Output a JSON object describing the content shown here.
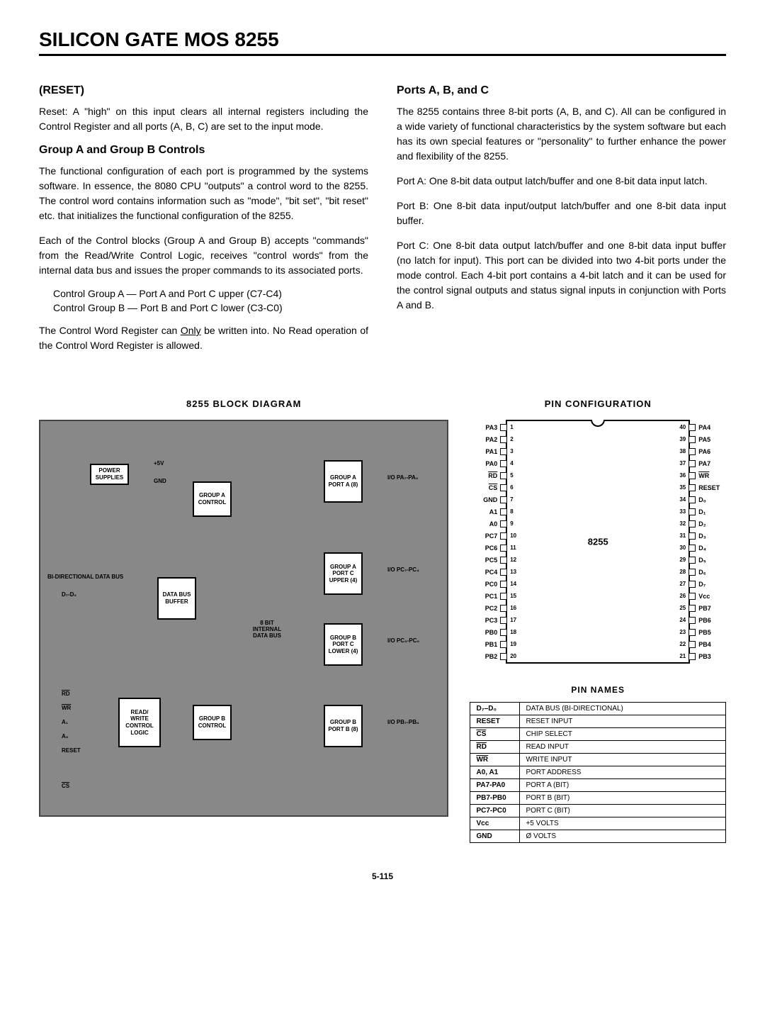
{
  "title": "SILICON GATE MOS 8255",
  "pageNum": "5-115",
  "left": {
    "h1": "(RESET)",
    "p1": "Reset: A \"high\" on this input clears all internal registers including the Control Register and all ports (A, B, C) are set to the input mode.",
    "h2": "Group A and Group B Controls",
    "p2": "The functional configuration of each port is programmed by the systems software. In essence, the 8080 CPU \"outputs\" a control word to the 8255. The control word contains information such as \"mode\", \"bit set\", \"bit reset\" etc. that initializes the functional configuration of the 8255.",
    "p3": "Each of the Control blocks (Group A and Group B) accepts \"commands\" from the Read/Write Control Logic, receives \"control words\" from the internal data bus and issues the proper commands to its associated ports.",
    "i1": "Control Group A — Port A and Port C upper (C7-C4)",
    "i2": "Control Group B — Port B and Port C lower (C3-C0)",
    "p4a": "The Control Word Register can ",
    "p4u": "Only",
    "p4b": " be written into. No Read operation of the Control Word Register is allowed."
  },
  "right": {
    "h1": "Ports A, B, and C",
    "p1": "The 8255 contains three 8-bit ports (A, B, and C). All can be configured in a wide variety of functional characteristics by the system software but each has its own special features or \"personality\" to further enhance the power and flexibility of the 8255.",
    "p2": "Port A: One 8-bit data output latch/buffer and one 8-bit data input latch.",
    "p3": "Port B: One 8-bit data input/output latch/buffer and one 8-bit data input buffer.",
    "p4": "Port C: One 8-bit data output latch/buffer and one 8-bit data input buffer (no latch for input). This port can be divided into two 4-bit ports under the mode control. Each 4-bit port contains a 4-bit latch and it can be used for the control signal outputs and status signal inputs in conjunction with Ports A and B."
  },
  "blockDiagram": {
    "title": "8255 BLOCK DIAGRAM",
    "boxes": {
      "power": "POWER\nSUPPLIES",
      "groupACtrl": "GROUP\nA\nCONTROL",
      "groupBCtrl": "GROUP\nB\nCONTROL",
      "dataBuf": "DATA\nBUS\nBUFFER",
      "rwLogic": "READ/\nWRITE\nCONTROL\nLOGIC",
      "portA": "GROUP\nA\nPORT\nA\n(8)",
      "portCU": "GROUP\nA\nPORT C\nUPPER\n(4)",
      "portCL": "GROUP\nB\nPORT C\nLOWER\n(4)",
      "portB": "GROUP\nB\nPORT\nB\n(8)",
      "internal": "8 BIT\nINTERNAL\nDATA BUS"
    },
    "labels": {
      "bidir": "BI-DIRECTIONAL DATA BUS",
      "d7d0": "D₇-D₀",
      "ioA": "I/O\nPA₇-PA₀",
      "ioCU": "I/O\nPC₇-PC₄",
      "ioCL": "I/O\nPC₃-PC₀",
      "ioB": "I/O\nPB₇-PB₀",
      "rd": "RD",
      "wr": "WR",
      "a1": "A₁",
      "a0": "A₀",
      "reset": "RESET",
      "cs": "CS",
      "p5v": "+5V",
      "gnd": "GND"
    }
  },
  "pinConfig": {
    "title": "PIN CONFIGURATION",
    "chipName": "8255",
    "pins": [
      {
        "l": "PA3",
        "ln": "1",
        "rn": "40",
        "r": "PA4"
      },
      {
        "l": "PA2",
        "ln": "2",
        "rn": "39",
        "r": "PA5"
      },
      {
        "l": "PA1",
        "ln": "3",
        "rn": "38",
        "r": "PA6"
      },
      {
        "l": "PA0",
        "ln": "4",
        "rn": "37",
        "r": "PA7"
      },
      {
        "l": "RD",
        "ln": "5",
        "rn": "36",
        "r": "WR",
        "lo": true,
        "ro": true
      },
      {
        "l": "CS",
        "ln": "6",
        "rn": "35",
        "r": "RESET",
        "lo": true
      },
      {
        "l": "GND",
        "ln": "7",
        "rn": "34",
        "r": "D₀"
      },
      {
        "l": "A1",
        "ln": "8",
        "rn": "33",
        "r": "D₁"
      },
      {
        "l": "A0",
        "ln": "9",
        "rn": "32",
        "r": "D₂"
      },
      {
        "l": "PC7",
        "ln": "10",
        "rn": "31",
        "r": "D₃"
      },
      {
        "l": "PC6",
        "ln": "11",
        "rn": "30",
        "r": "D₄"
      },
      {
        "l": "PC5",
        "ln": "12",
        "rn": "29",
        "r": "D₅"
      },
      {
        "l": "PC4",
        "ln": "13",
        "rn": "28",
        "r": "D₆"
      },
      {
        "l": "PC0",
        "ln": "14",
        "rn": "27",
        "r": "D₇"
      },
      {
        "l": "PC1",
        "ln": "15",
        "rn": "26",
        "r": "Vcc"
      },
      {
        "l": "PC2",
        "ln": "16",
        "rn": "25",
        "r": "PB7"
      },
      {
        "l": "PC3",
        "ln": "17",
        "rn": "24",
        "r": "PB6"
      },
      {
        "l": "PB0",
        "ln": "18",
        "rn": "23",
        "r": "PB5"
      },
      {
        "l": "PB1",
        "ln": "19",
        "rn": "22",
        "r": "PB4"
      },
      {
        "l": "PB2",
        "ln": "20",
        "rn": "21",
        "r": "PB3"
      }
    ]
  },
  "pinNames": {
    "title": "PIN NAMES",
    "rows": [
      {
        "k": "D₇–D₀",
        "v": "DATA BUS (BI-DIRECTIONAL)"
      },
      {
        "k": "RESET",
        "v": "RESET INPUT"
      },
      {
        "k": "CS",
        "v": "CHIP SELECT",
        "ko": true
      },
      {
        "k": "RD",
        "v": "READ INPUT",
        "ko": true
      },
      {
        "k": "WR",
        "v": "WRITE INPUT",
        "ko": true
      },
      {
        "k": "A0, A1",
        "v": "PORT ADDRESS"
      },
      {
        "k": "PA7-PA0",
        "v": "PORT A (BIT)"
      },
      {
        "k": "PB7-PB0",
        "v": "PORT B (BIT)"
      },
      {
        "k": "PC7-PC0",
        "v": "PORT C (BIT)"
      },
      {
        "k": "Vcc",
        "v": "+5 VOLTS"
      },
      {
        "k": "GND",
        "v": "Ø VOLTS"
      }
    ]
  }
}
